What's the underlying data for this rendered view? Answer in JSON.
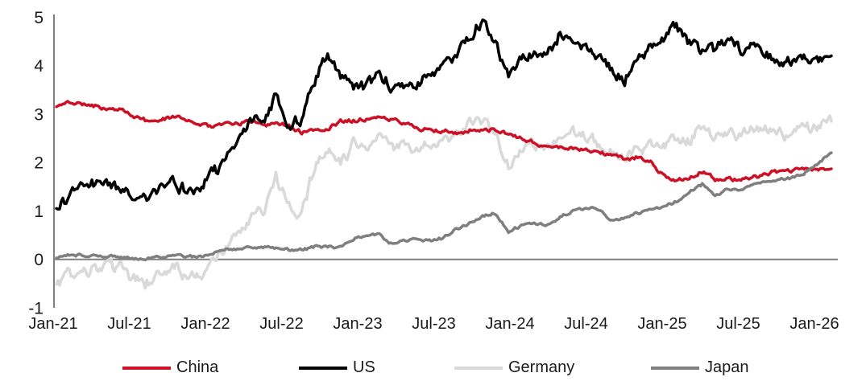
{
  "chart_data": {
    "type": "line",
    "title": "",
    "xlabel": "",
    "ylabel": "",
    "ylim": [
      -1,
      5
    ],
    "grid": false,
    "zero_line": true,
    "legend_position": "bottom",
    "axis_color": "#808080",
    "text_color": "#1a1a1a",
    "y_ticks": [
      5,
      4,
      3,
      2,
      1,
      0,
      -1
    ],
    "x_tick_labels": [
      "Jan-21",
      "Jul-21",
      "Jan-22",
      "Jul-22",
      "Jan-23",
      "Jul-23",
      "Jan-24",
      "Jul-24",
      "Jan-25",
      "Jul-25",
      "Jan-26"
    ],
    "x_tick_month_indices": [
      0,
      6,
      12,
      18,
      24,
      30,
      36,
      42,
      48,
      54,
      60
    ],
    "categories": [
      "Jan-21",
      "Feb-21",
      "Mar-21",
      "Apr-21",
      "May-21",
      "Jun-21",
      "Jul-21",
      "Aug-21",
      "Sep-21",
      "Oct-21",
      "Nov-21",
      "Dec-21",
      "Jan-22",
      "Feb-22",
      "Mar-22",
      "Apr-22",
      "May-22",
      "Jun-22",
      "Jul-22",
      "Aug-22",
      "Sep-22",
      "Oct-22",
      "Nov-22",
      "Dec-22",
      "Jan-23",
      "Feb-23",
      "Mar-23",
      "Apr-23",
      "May-23",
      "Jun-23",
      "Jul-23",
      "Aug-23",
      "Sep-23",
      "Oct-23",
      "Nov-23",
      "Dec-23",
      "Jan-24",
      "Feb-24",
      "Mar-24",
      "Apr-24",
      "May-24",
      "Jun-24",
      "Jul-24",
      "Aug-24",
      "Sep-24",
      "Oct-24",
      "Nov-24",
      "Dec-24",
      "Jan-25",
      "Feb-25",
      "Mar-25",
      "Apr-25",
      "May-25",
      "Jun-25",
      "Jul-25",
      "Aug-25",
      "Sep-25",
      "Oct-25",
      "Nov-25",
      "Dec-25",
      "Jan-26"
    ],
    "draw_order": [
      2,
      0,
      1,
      3
    ],
    "series": [
      {
        "name": "China",
        "color": "#CC1126",
        "width": 3.5,
        "jitter": 0.016,
        "seed": 11,
        "values": [
          3.15,
          3.25,
          3.2,
          3.18,
          3.1,
          3.08,
          2.95,
          2.85,
          2.88,
          2.95,
          2.9,
          2.8,
          2.75,
          2.8,
          2.8,
          2.85,
          2.8,
          2.8,
          2.75,
          2.62,
          2.65,
          2.7,
          2.85,
          2.88,
          2.9,
          2.92,
          2.88,
          2.82,
          2.72,
          2.65,
          2.65,
          2.58,
          2.67,
          2.7,
          2.67,
          2.58,
          2.5,
          2.42,
          2.3,
          2.32,
          2.3,
          2.25,
          2.2,
          2.16,
          2.06,
          2.1,
          2.02,
          1.72,
          1.63,
          1.7,
          1.82,
          1.65,
          1.67,
          1.64,
          1.7,
          1.78,
          1.8,
          1.82,
          1.88,
          1.85,
          1.87
        ]
      },
      {
        "name": "US",
        "color": "#000000",
        "width": 3.5,
        "jitter": 0.05,
        "seed": 22,
        "values": [
          1.05,
          1.35,
          1.7,
          1.6,
          1.6,
          1.45,
          1.25,
          1.3,
          1.5,
          1.58,
          1.45,
          1.5,
          1.8,
          1.95,
          2.35,
          2.9,
          2.85,
          3.4,
          2.75,
          2.9,
          3.7,
          4.2,
          3.8,
          3.55,
          3.5,
          3.9,
          3.55,
          3.45,
          3.7,
          3.8,
          3.95,
          4.25,
          4.55,
          4.97,
          4.4,
          3.9,
          4.1,
          4.25,
          4.2,
          4.65,
          4.45,
          4.3,
          4.2,
          3.9,
          3.68,
          4.25,
          4.35,
          4.55,
          4.8,
          4.45,
          4.25,
          4.35,
          4.5,
          4.35,
          4.4,
          4.25,
          4.1,
          4.05,
          4.1,
          4.15,
          4.2
        ]
      },
      {
        "name": "Germany",
        "color": "#D9D9D9",
        "width": 3.5,
        "jitter": 0.05,
        "seed": 33,
        "values": [
          -0.52,
          -0.3,
          -0.32,
          -0.25,
          -0.15,
          -0.2,
          -0.42,
          -0.48,
          -0.33,
          -0.12,
          -0.33,
          -0.35,
          -0.05,
          0.2,
          0.55,
          0.85,
          1.0,
          1.7,
          1.05,
          0.9,
          1.95,
          2.3,
          1.95,
          2.4,
          2.2,
          2.6,
          2.25,
          2.4,
          2.3,
          2.4,
          2.45,
          2.55,
          2.75,
          2.9,
          2.55,
          1.95,
          2.25,
          2.4,
          2.35,
          2.55,
          2.62,
          2.48,
          2.42,
          2.25,
          2.12,
          2.28,
          2.32,
          2.35,
          2.5,
          2.42,
          2.85,
          2.55,
          2.6,
          2.55,
          2.65,
          2.72,
          2.68,
          2.6,
          2.7,
          2.8,
          2.85
        ]
      },
      {
        "name": "Japan",
        "color": "#7F7F7F",
        "width": 3.5,
        "jitter": 0.012,
        "seed": 44,
        "values": [
          0.03,
          0.1,
          0.08,
          0.07,
          0.07,
          0.05,
          0.02,
          0.02,
          0.05,
          0.08,
          0.07,
          0.05,
          0.12,
          0.2,
          0.22,
          0.23,
          0.24,
          0.23,
          0.2,
          0.2,
          0.25,
          0.25,
          0.25,
          0.42,
          0.48,
          0.5,
          0.32,
          0.4,
          0.42,
          0.4,
          0.45,
          0.63,
          0.75,
          0.88,
          0.95,
          0.58,
          0.7,
          0.72,
          0.73,
          0.88,
          1.0,
          1.05,
          1.05,
          0.8,
          0.85,
          0.95,
          1.05,
          1.08,
          1.2,
          1.4,
          1.55,
          1.3,
          1.45,
          1.42,
          1.55,
          1.6,
          1.65,
          1.68,
          1.8,
          2.0,
          2.2
        ]
      }
    ]
  },
  "legend": {
    "items": [
      {
        "label": "China"
      },
      {
        "label": "US"
      },
      {
        "label": "Germany"
      },
      {
        "label": "Japan"
      }
    ]
  }
}
